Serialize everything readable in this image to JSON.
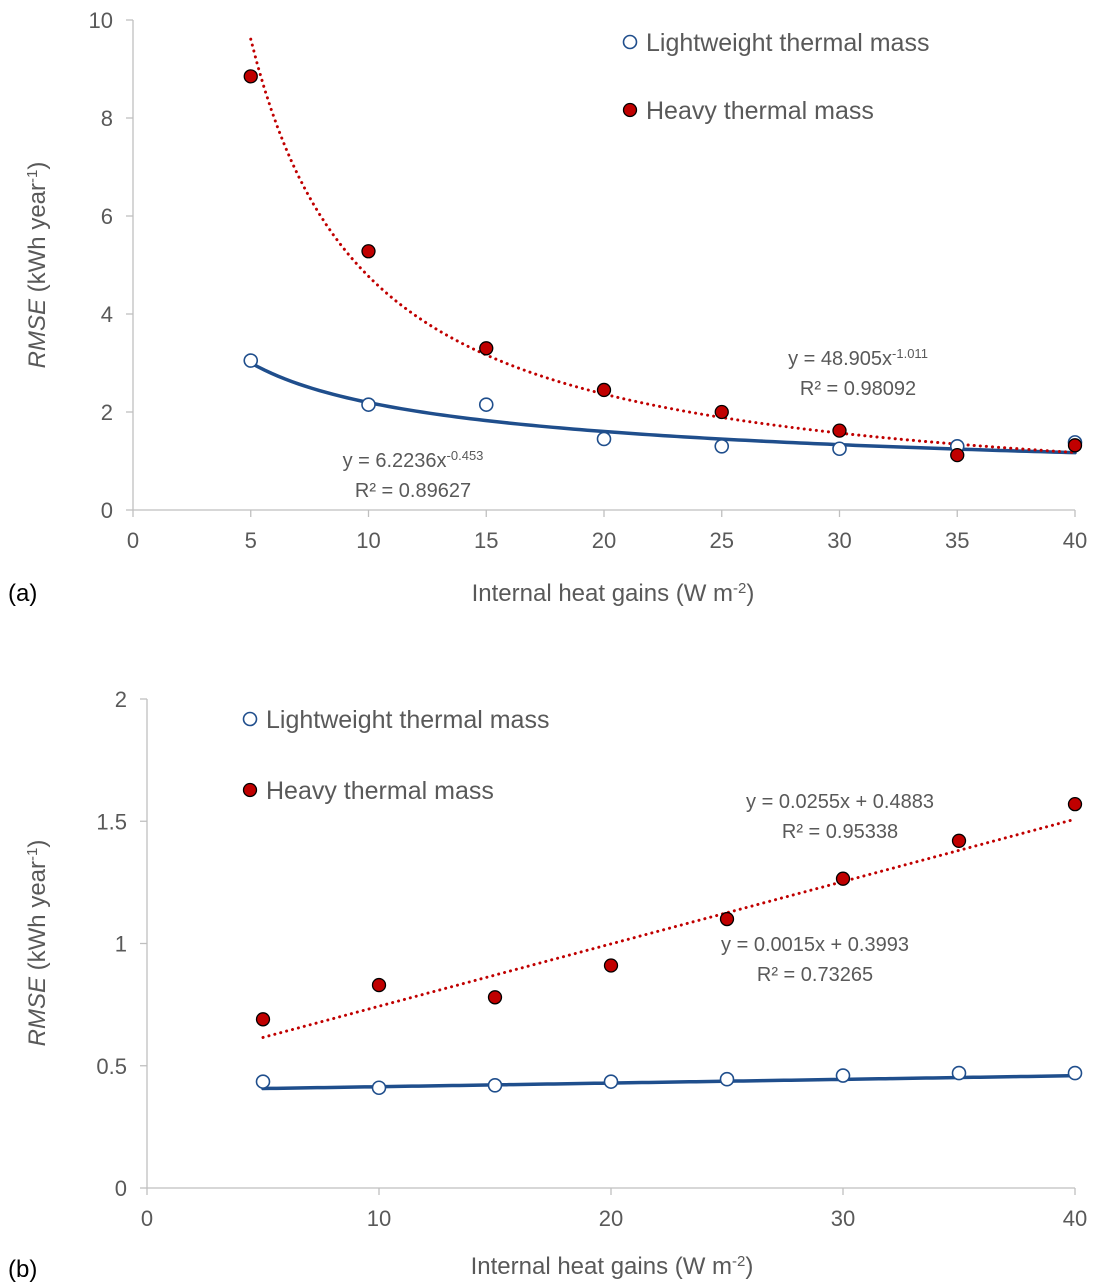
{
  "chart_data": [
    {
      "panel_label": "(a)",
      "type": "scatter",
      "xlabel": "Internal heat gains (W m",
      "xlabel_sup": "-2",
      "xlabel_end": ")",
      "ylabel_italic": "RMSE",
      "ylabel": " (kWh year",
      "ylabel_sup": "-1",
      "ylabel_end": ")",
      "xlim": [
        0,
        40
      ],
      "ylim": [
        0,
        10
      ],
      "xticks": [
        0,
        5,
        10,
        15,
        20,
        25,
        30,
        35,
        40
      ],
      "yticks": [
        0,
        2,
        4,
        6,
        8,
        10
      ],
      "grid": false,
      "legend_position": "top-right",
      "series": [
        {
          "name": "Lightweight thermal mass",
          "marker": "open-circle",
          "color": "#1f4e8c",
          "x": [
            5,
            10,
            15,
            20,
            25,
            30,
            35,
            40
          ],
          "y": [
            3.05,
            2.15,
            2.15,
            1.45,
            1.3,
            1.25,
            1.3,
            1.38
          ],
          "trendline": {
            "type": "power",
            "a": 6.2236,
            "b": -0.453,
            "style": "solid",
            "eq_prefix": "y = 6.2236x",
            "eq_exp": "-0.453",
            "r2": "R² = 0.89627"
          }
        },
        {
          "name": "Heavy thermal mass",
          "marker": "filled-circle",
          "color": "#c00000",
          "x": [
            5,
            10,
            15,
            20,
            25,
            30,
            35,
            40
          ],
          "y": [
            8.85,
            5.28,
            3.3,
            2.45,
            2.0,
            1.62,
            1.12,
            1.32
          ],
          "trendline": {
            "type": "power",
            "a": 48.905,
            "b": -1.011,
            "style": "dotted",
            "eq_prefix": "y = 48.905x",
            "eq_exp": "-1.011",
            "r2": "R² = 0.98092"
          }
        }
      ]
    },
    {
      "panel_label": "(b)",
      "type": "scatter",
      "xlabel": "Internal heat gains (W m",
      "xlabel_sup": "-2",
      "xlabel_end": ")",
      "ylabel_italic": "RMSE",
      "ylabel": " (kWh year",
      "ylabel_sup": "-1",
      "ylabel_end": ")",
      "xlim": [
        0,
        40
      ],
      "ylim": [
        0,
        2
      ],
      "xticks": [
        0,
        10,
        20,
        30,
        40
      ],
      "yticks": [
        0,
        0.5,
        1,
        1.5,
        2
      ],
      "grid": false,
      "legend_position": "top-left",
      "series": [
        {
          "name": "Lightweight thermal mass",
          "marker": "open-circle",
          "color": "#1f4e8c",
          "x": [
            5,
            10,
            15,
            20,
            25,
            30,
            35,
            40
          ],
          "y": [
            0.435,
            0.41,
            0.42,
            0.435,
            0.445,
            0.46,
            0.47,
            0.47
          ],
          "trendline": {
            "type": "linear",
            "m": 0.0015,
            "c": 0.3993,
            "style": "solid",
            "eq_prefix": "y = 0.0015x + 0.3993",
            "eq_exp": "",
            "r2": "R² = 0.73265"
          }
        },
        {
          "name": "Heavy thermal mass",
          "marker": "filled-circle",
          "color": "#c00000",
          "x": [
            5,
            10,
            15,
            20,
            25,
            30,
            35,
            40
          ],
          "y": [
            0.69,
            0.83,
            0.78,
            0.91,
            1.1,
            1.265,
            1.42,
            1.57
          ],
          "trendline": {
            "type": "linear",
            "m": 0.0255,
            "c": 0.4883,
            "style": "dotted",
            "eq_prefix": "y = 0.0255x + 0.4883",
            "eq_exp": "",
            "r2": "R² = 0.95338"
          }
        }
      ]
    }
  ]
}
